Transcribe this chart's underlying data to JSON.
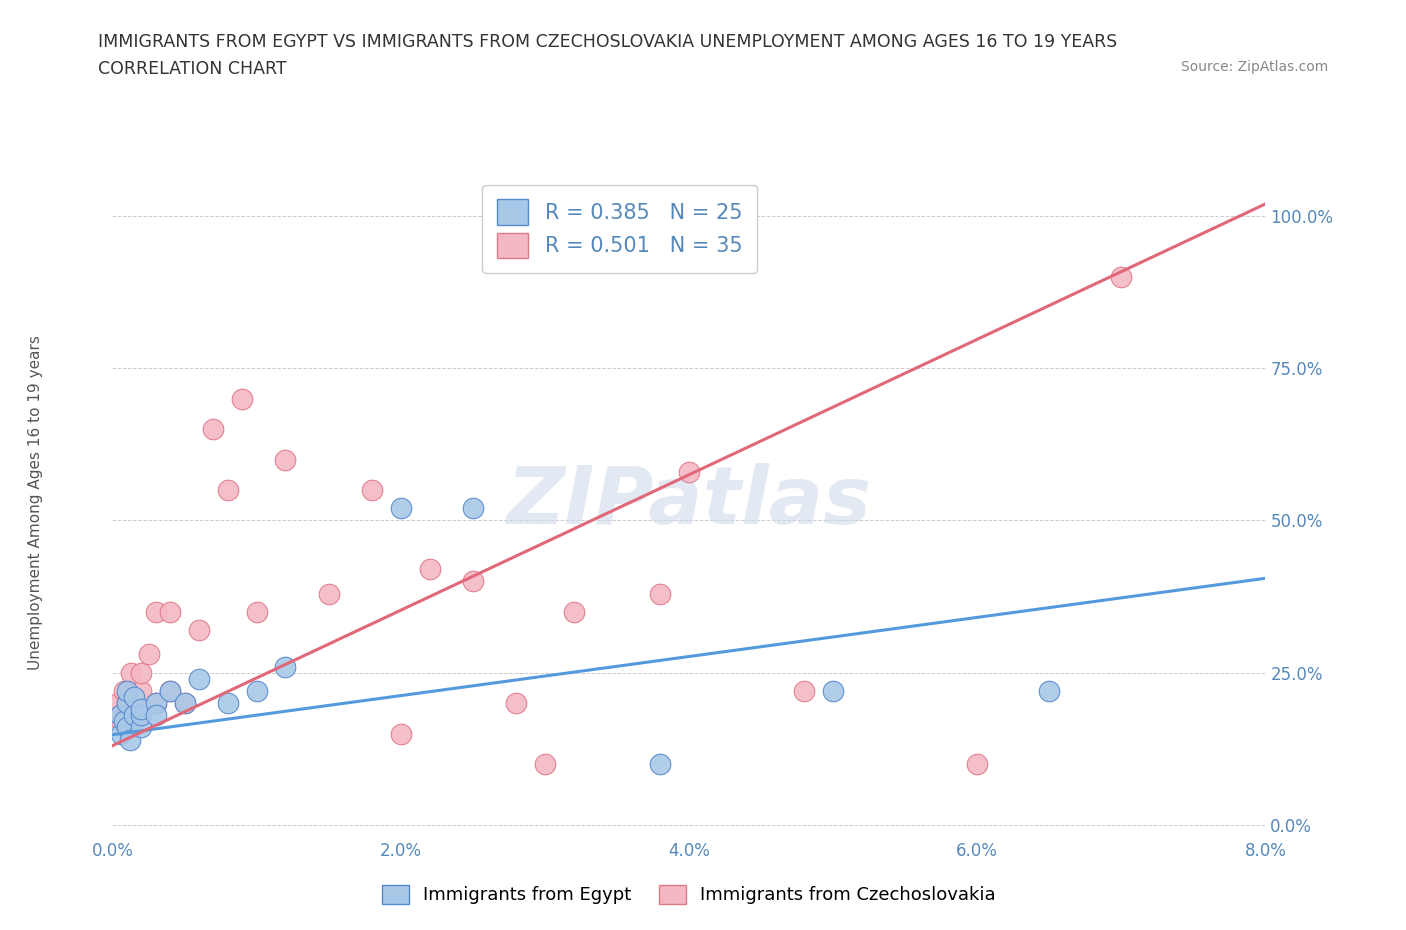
{
  "title_line1": "IMMIGRANTS FROM EGYPT VS IMMIGRANTS FROM CZECHOSLOVAKIA UNEMPLOYMENT AMONG AGES 16 TO 19 YEARS",
  "title_line2": "CORRELATION CHART",
  "source": "Source: ZipAtlas.com",
  "ylabel": "Unemployment Among Ages 16 to 19 years",
  "xlim": [
    0.0,
    0.08
  ],
  "ylim": [
    -0.02,
    1.08
  ],
  "xticks": [
    0.0,
    0.02,
    0.04,
    0.06,
    0.08
  ],
  "xtick_labels": [
    "0.0%",
    "2.0%",
    "4.0%",
    "6.0%",
    "8.0%"
  ],
  "yticks": [
    0.0,
    0.25,
    0.5,
    0.75,
    1.0
  ],
  "ytick_labels": [
    "0.0%",
    "25.0%",
    "50.0%",
    "75.0%",
    "100.0%"
  ],
  "egypt_color": "#a8c8e8",
  "egypt_edge": "#5588cc",
  "czech_color": "#f4b8c4",
  "czech_edge": "#e07888",
  "line_egypt_color": "#5599dd",
  "line_czech_color": "#e06878",
  "legend_egypt_label": "R = 0.385   N = 25",
  "legend_czech_label": "R = 0.501   N = 35",
  "watermark": "ZIPatlas",
  "egypt_x": [
    0.0005,
    0.0006,
    0.0008,
    0.001,
    0.001,
    0.001,
    0.0012,
    0.0015,
    0.0015,
    0.002,
    0.002,
    0.002,
    0.003,
    0.003,
    0.004,
    0.005,
    0.006,
    0.008,
    0.01,
    0.012,
    0.02,
    0.025,
    0.038,
    0.05,
    0.065
  ],
  "egypt_y": [
    0.18,
    0.15,
    0.17,
    0.16,
    0.2,
    0.22,
    0.14,
    0.18,
    0.21,
    0.16,
    0.18,
    0.19,
    0.2,
    0.18,
    0.22,
    0.2,
    0.24,
    0.2,
    0.22,
    0.26,
    0.52,
    0.52,
    0.1,
    0.22,
    0.22
  ],
  "czech_x": [
    0.0004,
    0.0006,
    0.0008,
    0.001,
    0.001,
    0.0012,
    0.0013,
    0.0015,
    0.002,
    0.002,
    0.0025,
    0.003,
    0.003,
    0.004,
    0.004,
    0.005,
    0.006,
    0.007,
    0.008,
    0.009,
    0.01,
    0.012,
    0.015,
    0.018,
    0.02,
    0.022,
    0.025,
    0.028,
    0.03,
    0.032,
    0.038,
    0.04,
    0.048,
    0.06,
    0.07
  ],
  "czech_y": [
    0.2,
    0.17,
    0.22,
    0.18,
    0.2,
    0.2,
    0.25,
    0.17,
    0.22,
    0.25,
    0.28,
    0.2,
    0.35,
    0.22,
    0.35,
    0.2,
    0.32,
    0.65,
    0.55,
    0.7,
    0.35,
    0.6,
    0.38,
    0.55,
    0.15,
    0.42,
    0.4,
    0.2,
    0.1,
    0.35,
    0.38,
    0.58,
    0.22,
    0.1,
    0.9
  ],
  "egypt_line_x0": 0.0,
  "egypt_line_y0": 0.148,
  "egypt_line_x1": 0.08,
  "egypt_line_y1": 0.405,
  "czech_line_x0": 0.0,
  "czech_line_y0": 0.13,
  "czech_line_x1": 0.08,
  "czech_line_y1": 1.02
}
